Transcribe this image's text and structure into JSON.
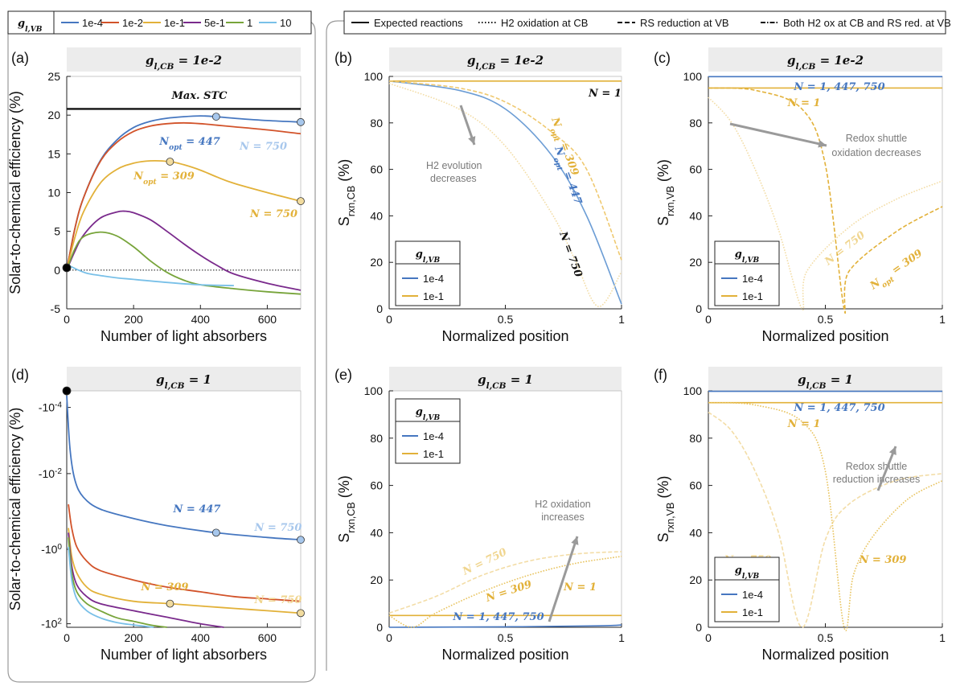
{
  "top_legend_left": {
    "title": "g_l,VB",
    "items": [
      {
        "label": "1e-4",
        "color": "#4677c0"
      },
      {
        "label": "1e-2",
        "color": "#d2532a"
      },
      {
        "label": "1e-1",
        "color": "#e2b139"
      },
      {
        "label": "5e-1",
        "color": "#7a2a8c"
      },
      {
        "label": "1",
        "color": "#77a43a"
      },
      {
        "label": "10",
        "color": "#79c0e8"
      }
    ]
  },
  "top_legend_right": {
    "items": [
      {
        "label": "Expected reactions",
        "style": "solid"
      },
      {
        "label": "H2 oxidation at CB",
        "style": "dotted"
      },
      {
        "label": "RS reduction at VB",
        "style": "dashed"
      },
      {
        "label": "Both H2 ox at CB and RS red. at VB",
        "style": "dashdot"
      }
    ]
  },
  "chart_data": [
    {
      "panel": "(a)",
      "type": "line",
      "strip_title": "g_l,CB = 1e-2",
      "xlabel": "Number of light absorbers",
      "ylabel": "Solar-to-chemical efficiency (%)",
      "xlim": [
        0,
        700
      ],
      "ylim": [
        -5,
        25
      ],
      "xticks": [
        0,
        200,
        400,
        600
      ],
      "yticks": [
        -5,
        0,
        5,
        10,
        15,
        20,
        25
      ],
      "reference_lines": [
        {
          "label": "Max. STC",
          "y": 20.8,
          "style": "solid"
        },
        {
          "y": 0,
          "style": "dotted"
        }
      ],
      "series": [
        {
          "legend": "1e-4",
          "color": "#4677c0",
          "x": [
            0,
            25,
            50,
            100,
            150,
            200,
            250,
            300,
            350,
            400,
            447,
            500,
            600,
            700
          ],
          "y": [
            0,
            5.5,
            9.3,
            14.1,
            16.8,
            18.4,
            19.2,
            19.6,
            19.8,
            19.9,
            19.8,
            19.6,
            19.3,
            19.1
          ]
        },
        {
          "legend": "1e-2",
          "color": "#d2532a",
          "x": [
            0,
            25,
            50,
            100,
            150,
            200,
            250,
            300,
            350,
            400,
            450,
            500,
            600,
            700
          ],
          "y": [
            0,
            5.5,
            9.3,
            14,
            16.5,
            17.9,
            18.6,
            18.9,
            19,
            18.9,
            18.7,
            18.5,
            18.1,
            17.6
          ]
        },
        {
          "legend": "1e-1",
          "color": "#e2b139",
          "x": [
            0,
            25,
            50,
            100,
            150,
            200,
            250,
            309,
            350,
            400,
            450,
            500,
            600,
            700
          ],
          "y": [
            0,
            4.3,
            7.5,
            11.2,
            13,
            13.8,
            14.1,
            14,
            13.6,
            12.9,
            12,
            11.2,
            10,
            8.9
          ]
        },
        {
          "legend": "5e-1",
          "color": "#7a2a8c",
          "x": [
            0,
            25,
            50,
            100,
            150,
            175,
            200,
            250,
            300,
            350,
            400,
            450,
            500,
            600,
            700
          ],
          "y": [
            0,
            2.5,
            4.5,
            6.7,
            7.5,
            7.6,
            7.4,
            6.5,
            5,
            3.4,
            1.9,
            0.6,
            -0.5,
            -1.7,
            -2.6
          ]
        },
        {
          "legend": "1",
          "color": "#77a43a",
          "x": [
            0,
            25,
            50,
            100,
            150,
            200,
            250,
            300,
            350,
            400,
            500,
            600,
            700
          ],
          "y": [
            0,
            2.8,
            4.3,
            4.9,
            4.4,
            3,
            1.2,
            -0.3,
            -1.3,
            -1.9,
            -2.4,
            -2.8,
            -3.1
          ]
        },
        {
          "legend": "10",
          "color": "#79c0e8",
          "x": [
            0,
            10,
            30,
            60,
            100,
            150,
            200,
            300,
            400,
            500
          ],
          "y": [
            0.6,
            0.5,
            0.1,
            -0.4,
            -0.7,
            -1,
            -1.2,
            -1.6,
            -1.9,
            -2
          ]
        }
      ],
      "markers": [
        {
          "x": 447,
          "y": 19.8,
          "color": "#a7c7ec"
        },
        {
          "x": 700,
          "y": 19.1,
          "color": "#a7c7ec"
        },
        {
          "x": 309,
          "y": 14,
          "color": "#f2dc9f"
        },
        {
          "x": 700,
          "y": 8.9,
          "color": "#f2dc9f"
        },
        {
          "x": 0,
          "y": 0.3,
          "color": "#000000"
        }
      ],
      "annotations": [
        {
          "text": "Max. STC",
          "color": "#111111"
        },
        {
          "text": "N_opt = 447",
          "color": "#4677c0"
        },
        {
          "text": "N = 750",
          "color": "#a7c7ec"
        },
        {
          "text": "N_opt = 309",
          "color": "#e2b139"
        },
        {
          "text": "N = 750",
          "color": "#e2b139"
        }
      ]
    },
    {
      "panel": "(b)",
      "type": "line",
      "strip_title": "g_l,CB = 1e-2",
      "xlabel": "Normalized position",
      "ylabel": "S_rxn,CB (%)",
      "xlim": [
        0,
        1
      ],
      "ylim": [
        0,
        100
      ],
      "xticks": [
        0,
        0.5,
        1
      ],
      "yticks": [
        0,
        20,
        40,
        60,
        80,
        100
      ],
      "legend": {
        "title": "g_l,VB",
        "items": [
          {
            "label": "1e-4",
            "color": "#4677c0"
          },
          {
            "label": "1e-1",
            "color": "#e2b139"
          }
        ]
      },
      "series": [
        {
          "legend": "1e-4",
          "color": "#6c9dd5",
          "x": [
            0,
            0.3,
            0.5,
            0.7,
            0.85,
            1
          ],
          "y": [
            98,
            94,
            86,
            66,
            40,
            2
          ]
        },
        {
          "legend": "1e-1",
          "color": "#e2b139",
          "x": [
            0,
            1
          ],
          "y": [
            98,
            98
          ]
        },
        {
          "legend": "1e-1",
          "color": "#efc970",
          "x": [
            0,
            0.3,
            0.5,
            0.7,
            0.85,
            1
          ],
          "y": [
            98,
            95,
            89,
            76,
            60,
            21
          ]
        },
        {
          "legend": "1e-1",
          "color": "#f3dda7",
          "x": [
            0,
            0.3,
            0.5,
            0.7,
            0.8,
            0.9,
            1
          ],
          "y": [
            97,
            86,
            70,
            41,
            21,
            1,
            16
          ]
        }
      ],
      "annotations": [
        {
          "text": "N = 1",
          "color": "#111111"
        },
        {
          "text": "N_opt = 309",
          "color": "#e2b139"
        },
        {
          "text": "N_opt = 447",
          "color": "#4677c0"
        },
        {
          "text": "N = 750",
          "color": "#111111"
        },
        {
          "text": "H2 evolution",
          "color": "#7a7a7a"
        },
        {
          "text": "decreases",
          "color": "#7a7a7a"
        }
      ]
    },
    {
      "panel": "(c)",
      "type": "line",
      "strip_title": "g_l,CB = 1e-2",
      "xlabel": "Normalized position",
      "ylabel": "S_rxn,VB (%)",
      "xlim": [
        0,
        1
      ],
      "ylim": [
        0,
        100
      ],
      "xticks": [
        0,
        0.5,
        1
      ],
      "yticks": [
        0,
        20,
        40,
        60,
        80,
        100
      ],
      "legend": {
        "title": "g_l,VB",
        "items": [
          {
            "label": "1e-4",
            "color": "#4677c0"
          },
          {
            "label": "1e-1",
            "color": "#e2b139"
          }
        ]
      },
      "series": [
        {
          "legend": "1e-4",
          "color": "#4677c0",
          "x": [
            0,
            1
          ],
          "y": [
            99.9,
            99.9
          ]
        },
        {
          "legend": "1e-1",
          "color": "#e2b139",
          "x": [
            0,
            1
          ],
          "y": [
            95,
            95
          ]
        },
        {
          "legend": "1e-1",
          "color": "#e2b139",
          "x": [
            0,
            0.2,
            0.4,
            0.5,
            0.58,
            0.6,
            0.8,
            1
          ],
          "y": [
            95,
            94,
            86,
            62,
            0,
            16,
            33,
            44
          ]
        },
        {
          "legend": "1e-1",
          "color": "#f3dda7",
          "x": [
            0,
            0.1,
            0.2,
            0.3,
            0.4,
            0.42,
            0.6,
            0.8,
            1
          ],
          "y": [
            91,
            80,
            60,
            34,
            0,
            16,
            35,
            47,
            55
          ]
        }
      ],
      "annotations": [
        {
          "text": "N = 1, 447, 750",
          "color": "#4677c0"
        },
        {
          "text": "N = 1",
          "color": "#e2b139"
        },
        {
          "text": "N = 750",
          "color": "#f0d58e"
        },
        {
          "text": "N_opt = 309",
          "color": "#e2b139"
        },
        {
          "text": "Redox shuttle",
          "color": "#7a7a7a"
        },
        {
          "text": "oxidation decreases",
          "color": "#7a7a7a"
        }
      ]
    },
    {
      "panel": "(d)",
      "type": "line",
      "strip_title": "g_l,CB = 1",
      "xlabel": "Number of light absorbers",
      "ylabel": "Solar-to-chemical efficiency (%)",
      "xlim": [
        0,
        700
      ],
      "xticks": [
        0,
        200,
        400,
        600
      ],
      "yticks_labels": [
        "-10^-4",
        "-10^-2",
        "-10^0",
        "-10^2"
      ],
      "series": [
        {
          "legend": "1e-4",
          "color": "#4677c0",
          "x": [
            0,
            10,
            25,
            50,
            100,
            200,
            300,
            447,
            600,
            700
          ],
          "y_display": [
            0.02,
            0.25,
            0.38,
            0.45,
            0.5,
            0.54,
            0.57,
            0.6,
            0.62,
            0.63
          ]
        },
        {
          "legend": "1e-2",
          "color": "#d2532a",
          "x": [
            5,
            15,
            30,
            60,
            100,
            200,
            300,
            400,
            500,
            600,
            700
          ],
          "y_display": [
            0.48,
            0.58,
            0.66,
            0.72,
            0.76,
            0.8,
            0.83,
            0.85,
            0.87,
            0.88,
            0.89
          ]
        },
        {
          "legend": "1e-1",
          "color": "#e2b139",
          "x": [
            5,
            15,
            30,
            60,
            100,
            200,
            309,
            400,
            500,
            600,
            700
          ],
          "y_display": [
            0.58,
            0.7,
            0.77,
            0.83,
            0.86,
            0.89,
            0.9,
            0.91,
            0.92,
            0.93,
            0.94
          ]
        },
        {
          "legend": "5e-1",
          "color": "#7a2a8c",
          "x": [
            5,
            15,
            30,
            60,
            100,
            200,
            309,
            400,
            470
          ],
          "y_display": [
            0.6,
            0.74,
            0.82,
            0.87,
            0.9,
            0.93,
            0.96,
            0.985,
            1
          ]
        },
        {
          "legend": "1",
          "color": "#77a43a",
          "x": [
            5,
            15,
            30,
            60,
            100,
            150,
            200,
            250,
            300
          ],
          "y_display": [
            0.62,
            0.77,
            0.85,
            0.9,
            0.93,
            0.96,
            0.975,
            0.99,
            1
          ]
        },
        {
          "legend": "10",
          "color": "#79c0e8",
          "x": [
            5,
            15,
            30,
            60,
            100,
            150,
            200,
            260
          ],
          "y_display": [
            0.66,
            0.8,
            0.88,
            0.93,
            0.96,
            0.98,
            0.99,
            1
          ]
        }
      ],
      "markers": [
        {
          "x": 447,
          "y_display": 0.6,
          "color": "#a7c7ec"
        },
        {
          "x": 700,
          "y_display": 0.63,
          "color": "#a7c7ec"
        },
        {
          "x": 309,
          "y_display": 0.9,
          "color": "#f2dc9f"
        },
        {
          "x": 700,
          "y_display": 0.94,
          "color": "#f2dc9f"
        },
        {
          "x": 0,
          "y_display": 0.0,
          "color": "#000000"
        }
      ],
      "annotations": [
        {
          "text": "N = 447",
          "color": "#4677c0"
        },
        {
          "text": "N = 750",
          "color": "#a7c7ec"
        },
        {
          "text": "N = 309",
          "color": "#e2b139"
        },
        {
          "text": "N = 750",
          "color": "#f0d58e"
        }
      ]
    },
    {
      "panel": "(e)",
      "type": "line",
      "strip_title": "g_l,CB = 1",
      "xlabel": "Normalized position",
      "ylabel": "S_rxn,CB (%)",
      "xlim": [
        0,
        1
      ],
      "ylim": [
        0,
        100
      ],
      "xticks": [
        0,
        0.5,
        1
      ],
      "yticks": [
        0,
        20,
        40,
        60,
        80,
        100
      ],
      "legend": {
        "title": "g_l,VB",
        "items": [
          {
            "label": "1e-4",
            "color": "#4677c0"
          },
          {
            "label": "1e-1",
            "color": "#e2b139"
          }
        ]
      },
      "series": [
        {
          "legend": "1e-4",
          "color": "#4677c0",
          "x": [
            0,
            0.5,
            0.9,
            1
          ],
          "y": [
            0,
            0.2,
            0.6,
            1
          ]
        },
        {
          "legend": "1e-1",
          "color": "#e2b139",
          "x": [
            0,
            1
          ],
          "y": [
            5,
            5
          ]
        },
        {
          "legend": "1e-1",
          "color": "#f3dda7",
          "x": [
            0,
            0.2,
            0.4,
            0.6,
            0.8,
            1
          ],
          "y": [
            6,
            13,
            22,
            28,
            31,
            32
          ]
        },
        {
          "legend": "1e-1",
          "color": "#e8c35e",
          "x": [
            0,
            0.1,
            0.2,
            0.4,
            0.6,
            0.8,
            1
          ],
          "y": [
            5,
            0,
            6,
            15,
            22,
            27,
            30
          ]
        }
      ],
      "annotations": [
        {
          "text": "N = 750",
          "color": "#f0d58e"
        },
        {
          "text": "N = 309",
          "color": "#e2b139"
        },
        {
          "text": "N = 1",
          "color": "#e2b139"
        },
        {
          "text": "N = 1, 447, 750",
          "color": "#4677c0"
        },
        {
          "text": "H2 oxidation",
          "color": "#7a7a7a"
        },
        {
          "text": "increases",
          "color": "#7a7a7a"
        }
      ]
    },
    {
      "panel": "(f)",
      "type": "line",
      "strip_title": "g_l,CB = 1",
      "xlabel": "Normalized position",
      "ylabel": "S_rxn,VB (%)",
      "xlim": [
        0,
        1
      ],
      "ylim": [
        0,
        100
      ],
      "xticks": [
        0,
        0.5,
        1
      ],
      "yticks": [
        0,
        20,
        40,
        60,
        80,
        100
      ],
      "legend": {
        "title": "g_l,VB",
        "items": [
          {
            "label": "1e-4",
            "color": "#4677c0"
          },
          {
            "label": "1e-1",
            "color": "#e2b139"
          }
        ]
      },
      "series": [
        {
          "legend": "1e-4",
          "color": "#4677c0",
          "x": [
            0,
            1
          ],
          "y": [
            99.8,
            99.8
          ]
        },
        {
          "legend": "1e-1",
          "color": "#e2b139",
          "x": [
            0,
            1
          ],
          "y": [
            95,
            95
          ]
        },
        {
          "legend": "1e-1",
          "color": "#f3dda7",
          "x": [
            0,
            0.1,
            0.2,
            0.3,
            0.4,
            0.5,
            0.6,
            0.8,
            1
          ],
          "y": [
            91,
            83,
            66,
            40,
            0,
            37,
            52,
            62,
            65
          ]
        },
        {
          "legend": "1e-1",
          "color": "#e8c35e",
          "x": [
            0,
            0.2,
            0.4,
            0.5,
            0.58,
            0.62,
            0.7,
            0.85,
            1
          ],
          "y": [
            95,
            94,
            87,
            66,
            0,
            22,
            38,
            54,
            62
          ]
        }
      ],
      "annotations": [
        {
          "text": "N = 1, 447, 750",
          "color": "#4677c0"
        },
        {
          "text": "N = 1",
          "color": "#e2b139"
        },
        {
          "text": "N = 750",
          "color": "#f0d58e"
        },
        {
          "text": "N = 309",
          "color": "#e2b139"
        },
        {
          "text": "Redox shuttle",
          "color": "#7a7a7a"
        },
        {
          "text": "reduction increases",
          "color": "#7a7a7a"
        }
      ]
    }
  ]
}
